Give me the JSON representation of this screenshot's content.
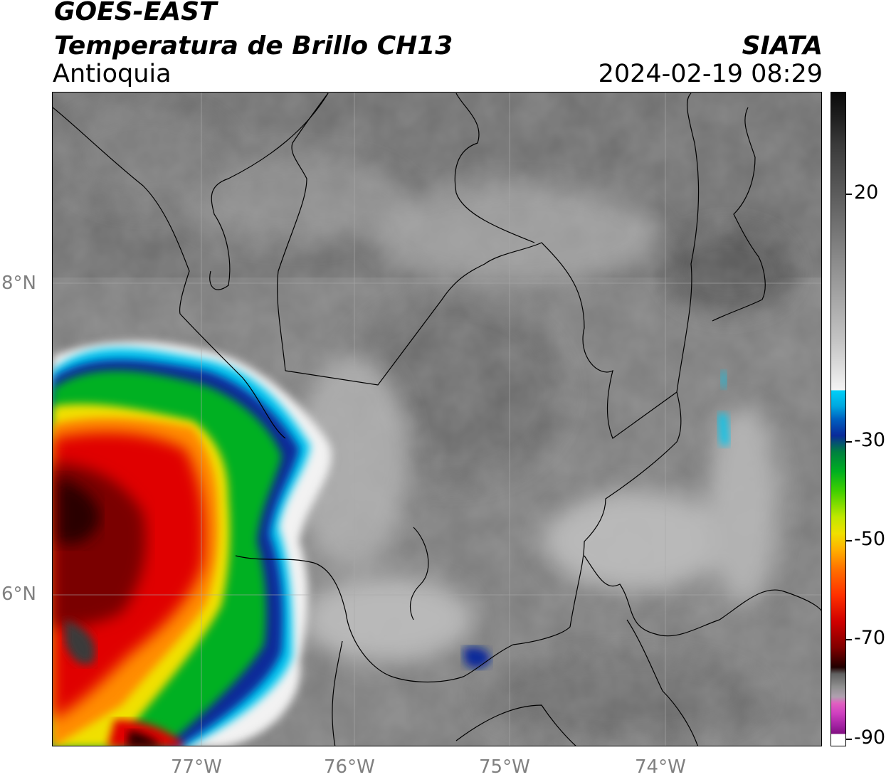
{
  "header": {
    "title": "GOES-EAST",
    "subtitle": "Temperatura de Brillo CH13",
    "region": "Antioquia",
    "organization": "SIATA",
    "datetime": "2024-02-19 08:29"
  },
  "map": {
    "lat_labels": [
      "8°N",
      "6°N"
    ],
    "lon_labels": [
      "77°W",
      "76°W",
      "75°W",
      "74°W"
    ],
    "graticule": {
      "lat": [
        8,
        6
      ],
      "lon": [
        -77,
        -76,
        -75,
        -74
      ]
    }
  },
  "colorbar": {
    "tick_labels": [
      "20",
      "-30",
      "-50",
      "-70",
      "-90"
    ],
    "colors": {
      "warm_gray_dark": "#1a1a1a",
      "light": "#f2f2f2",
      "cyan": "#00c8f0",
      "blue": "#0a2a9a",
      "green": "#00b020",
      "yellow": "#f0e000",
      "orange": "#ff8c00",
      "red": "#e00000",
      "dark_red": "#400000",
      "magenta": "#d040c0",
      "purple": "#801080"
    }
  }
}
